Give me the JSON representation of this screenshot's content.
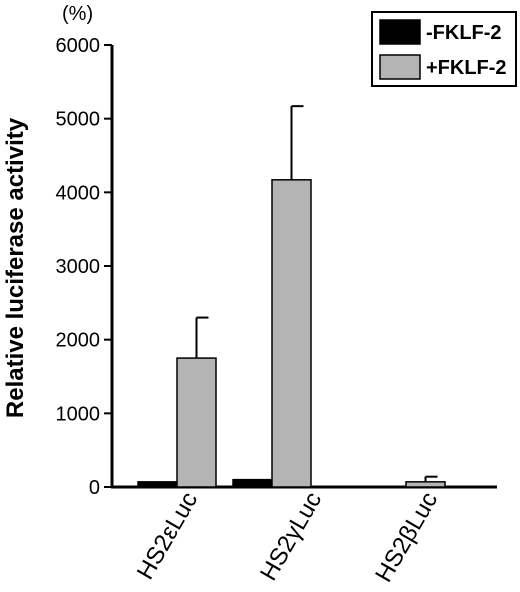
{
  "chart_data": {
    "type": "bar",
    "title": "",
    "xlabel": "",
    "ylabel": "Relative luciferase activity",
    "y_unit": "(%)",
    "ylim": [
      0,
      6000
    ],
    "yticks": [
      0,
      1000,
      2000,
      3000,
      4000,
      5000,
      6000
    ],
    "categories": [
      "HS2εLuc",
      "HS2γLuc",
      "HS2βLuc"
    ],
    "series": [
      {
        "name": "-FKLF-2",
        "color": "#000000",
        "values": [
          70,
          100,
          0
        ],
        "errors": [
          0,
          0,
          0
        ]
      },
      {
        "name": "+FKLF-2",
        "color": "#b4b4b4",
        "values": [
          1750,
          4170,
          70
        ],
        "errors": [
          550,
          1000,
          70
        ]
      }
    ],
    "legend_position": "top-right",
    "grid": false
  }
}
